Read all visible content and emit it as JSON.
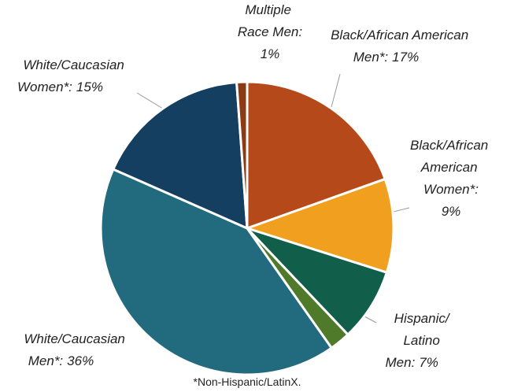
{
  "chart_data": {
    "type": "pie",
    "categories": [
      "Black/African American Men*:",
      "Black/African American Women*:",
      "Hispanic/ Latino Men:",
      null,
      "White/Caucasian Men*:",
      "White/Caucasian Women*:",
      "Multiple Race Men:"
    ],
    "values": [
      17,
      9,
      7,
      2,
      36,
      15,
      1
    ],
    "value_labels": [
      "17%",
      "9%",
      "7%",
      null,
      "36%",
      "15%",
      "1%"
    ],
    "colors": [
      "#b5491a",
      "#f0a01e",
      "#115e4b",
      "#4f7a2a",
      "#226b7e",
      "#143f60",
      "#8b3a14"
    ],
    "footnote": "*Non-Hispanic/LatinX."
  }
}
